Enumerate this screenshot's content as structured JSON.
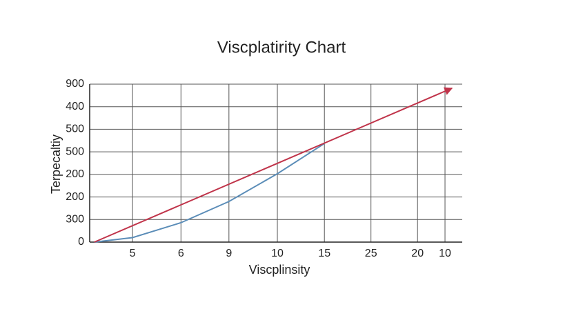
{
  "chart_data": {
    "type": "line",
    "title": "Viscplatirity Chart",
    "x_label": "Viscplinsity",
    "y_label": "Terpecaltiy",
    "xlim": [
      0,
      8
    ],
    "ylim": [
      0,
      7
    ],
    "grid": true,
    "xticks": [
      {
        "value": 0.92,
        "label": "5"
      },
      {
        "value": 1.96,
        "label": "6"
      },
      {
        "value": 2.99,
        "label": "9"
      },
      {
        "value": 4.03,
        "label": "10"
      },
      {
        "value": 5.04,
        "label": "15"
      },
      {
        "value": 6.04,
        "label": "25"
      },
      {
        "value": 7.04,
        "label": "20"
      },
      {
        "value": 7.63,
        "label": "10"
      }
    ],
    "yticks": [
      {
        "value": 0,
        "label": "0"
      },
      {
        "value": 1,
        "label": "300"
      },
      {
        "value": 2,
        "label": "200"
      },
      {
        "value": 3,
        "label": "200"
      },
      {
        "value": 4,
        "label": "500"
      },
      {
        "value": 5,
        "label": "500"
      },
      {
        "value": 6,
        "label": "400"
      },
      {
        "value": 7,
        "label": "900"
      }
    ],
    "series": [
      {
        "color": "#5b8db8",
        "x": [
          0.1,
          0.92,
          1.96,
          2.99,
          4.03,
          5.04
        ],
        "values": [
          0,
          0.2,
          0.86,
          1.8,
          3.03,
          4.37
        ]
      },
      {
        "color": "#c0344a",
        "arrow": true,
        "x": [
          0.1,
          7.78
        ],
        "values": [
          0,
          6.82
        ]
      }
    ]
  }
}
